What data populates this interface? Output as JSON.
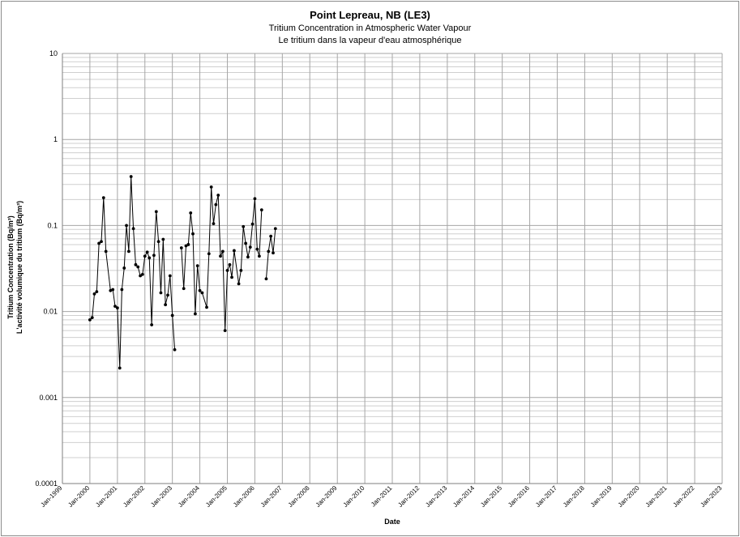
{
  "chart_data": {
    "type": "scatter",
    "title": "Point Lepreau, NB (LE3)",
    "subtitle_en": "Tritium Concentration in Atmospheric Water Vapour",
    "subtitle_fr": "Le tritium dans la vapeur d'eau atmosphérique",
    "xlabel": "Date",
    "ylabel_en": "Tritium Concentration (Bq/m³)",
    "ylabel_fr": "L'activité volumique du tritium (Bq/m³)",
    "yscale": "log",
    "ylim": [
      0.0001,
      10
    ],
    "y_ticks": [
      "10",
      "1",
      "0.1",
      "0.01",
      "0.001",
      "0.0001"
    ],
    "x_ticks": [
      "Jan-1999",
      "Jan-2000",
      "Jan-2001",
      "Jan-2002",
      "Jan-2003",
      "Jan-2004",
      "Jan-2005",
      "Jan-2006",
      "Jan-2007",
      "Jan-2008",
      "Jan-2009",
      "Jan-2010",
      "Jan-2011",
      "Jan-2012",
      "Jan-2013",
      "Jan-2014",
      "Jan-2015",
      "Jan-2016",
      "Jan-2017",
      "Jan-2018",
      "Jan-2019",
      "Jan-2020",
      "Jan-2021",
      "Jan-2022",
      "Jan-2023"
    ],
    "xlim": [
      "1999-01-01",
      "2023-01-01"
    ],
    "grid": true,
    "marker_color": "#000000",
    "line_color": "#000000",
    "segments": [
      [
        {
          "x": "2000-01",
          "y": 0.008
        },
        {
          "x": "2000-02",
          "y": 0.0085
        },
        {
          "x": "2000-03",
          "y": 0.016
        },
        {
          "x": "2000-04",
          "y": 0.017
        },
        {
          "x": "2000-05",
          "y": 0.062
        },
        {
          "x": "2000-06",
          "y": 0.065
        },
        {
          "x": "2000-07",
          "y": 0.21
        },
        {
          "x": "2000-08",
          "y": 0.05
        },
        {
          "x": "2000-10",
          "y": 0.0175
        },
        {
          "x": "2000-11",
          "y": 0.018
        },
        {
          "x": "2000-12",
          "y": 0.0115
        },
        {
          "x": "2001-01",
          "y": 0.011
        },
        {
          "x": "2001-02",
          "y": 0.0022
        },
        {
          "x": "2001-03",
          "y": 0.018
        },
        {
          "x": "2001-04",
          "y": 0.032
        },
        {
          "x": "2001-05",
          "y": 0.1
        },
        {
          "x": "2001-06",
          "y": 0.05
        },
        {
          "x": "2001-07",
          "y": 0.37
        },
        {
          "x": "2001-08",
          "y": 0.092
        },
        {
          "x": "2001-09",
          "y": 0.035
        },
        {
          "x": "2001-10",
          "y": 0.033
        },
        {
          "x": "2001-11",
          "y": 0.026
        },
        {
          "x": "2001-12",
          "y": 0.027
        },
        {
          "x": "2002-01",
          "y": 0.044
        },
        {
          "x": "2002-02",
          "y": 0.049
        },
        {
          "x": "2002-03",
          "y": 0.042
        },
        {
          "x": "2002-04",
          "y": 0.007
        },
        {
          "x": "2002-05",
          "y": 0.045
        },
        {
          "x": "2002-06",
          "y": 0.145
        },
        {
          "x": "2002-07",
          "y": 0.065
        },
        {
          "x": "2002-08",
          "y": 0.0165
        },
        {
          "x": "2002-09",
          "y": 0.069
        },
        {
          "x": "2002-10",
          "y": 0.012
        },
        {
          "x": "2002-11",
          "y": 0.0155
        },
        {
          "x": "2002-12",
          "y": 0.026
        },
        {
          "x": "2003-01",
          "y": 0.009
        },
        {
          "x": "2003-02",
          "y": 0.0036
        }
      ],
      [
        {
          "x": "2003-05",
          "y": 0.055
        },
        {
          "x": "2003-06",
          "y": 0.0185
        },
        {
          "x": "2003-07",
          "y": 0.058
        },
        {
          "x": "2003-08",
          "y": 0.06
        },
        {
          "x": "2003-09",
          "y": 0.14
        },
        {
          "x": "2003-10",
          "y": 0.08
        },
        {
          "x": "2003-11",
          "y": 0.0094
        },
        {
          "x": "2003-12",
          "y": 0.034
        },
        {
          "x": "2004-01",
          "y": 0.0175
        },
        {
          "x": "2004-02",
          "y": 0.0165
        },
        {
          "x": "2004-04",
          "y": 0.0112
        },
        {
          "x": "2004-05",
          "y": 0.047
        },
        {
          "x": "2004-06",
          "y": 0.28
        },
        {
          "x": "2004-07",
          "y": 0.105
        },
        {
          "x": "2004-08",
          "y": 0.175
        },
        {
          "x": "2004-09",
          "y": 0.225
        },
        {
          "x": "2004-10",
          "y": 0.044
        },
        {
          "x": "2004-11",
          "y": 0.05
        },
        {
          "x": "2004-12",
          "y": 0.006
        },
        {
          "x": "2005-01",
          "y": 0.03
        },
        {
          "x": "2005-02",
          "y": 0.035
        },
        {
          "x": "2005-03",
          "y": 0.025
        },
        {
          "x": "2005-04",
          "y": 0.051
        },
        {
          "x": "2005-06",
          "y": 0.021
        },
        {
          "x": "2005-07",
          "y": 0.03
        },
        {
          "x": "2005-08",
          "y": 0.097
        },
        {
          "x": "2005-09",
          "y": 0.062
        },
        {
          "x": "2005-10",
          "y": 0.043
        },
        {
          "x": "2005-11",
          "y": 0.056
        },
        {
          "x": "2005-12",
          "y": 0.104
        },
        {
          "x": "2006-01",
          "y": 0.205
        },
        {
          "x": "2006-02",
          "y": 0.053
        },
        {
          "x": "2006-03",
          "y": 0.044
        },
        {
          "x": "2006-04",
          "y": 0.152
        }
      ],
      [
        {
          "x": "2006-06",
          "y": 0.024
        },
        {
          "x": "2006-07",
          "y": 0.05
        },
        {
          "x": "2006-08",
          "y": 0.075
        },
        {
          "x": "2006-09",
          "y": 0.048
        },
        {
          "x": "2006-10",
          "y": 0.092
        }
      ]
    ]
  }
}
